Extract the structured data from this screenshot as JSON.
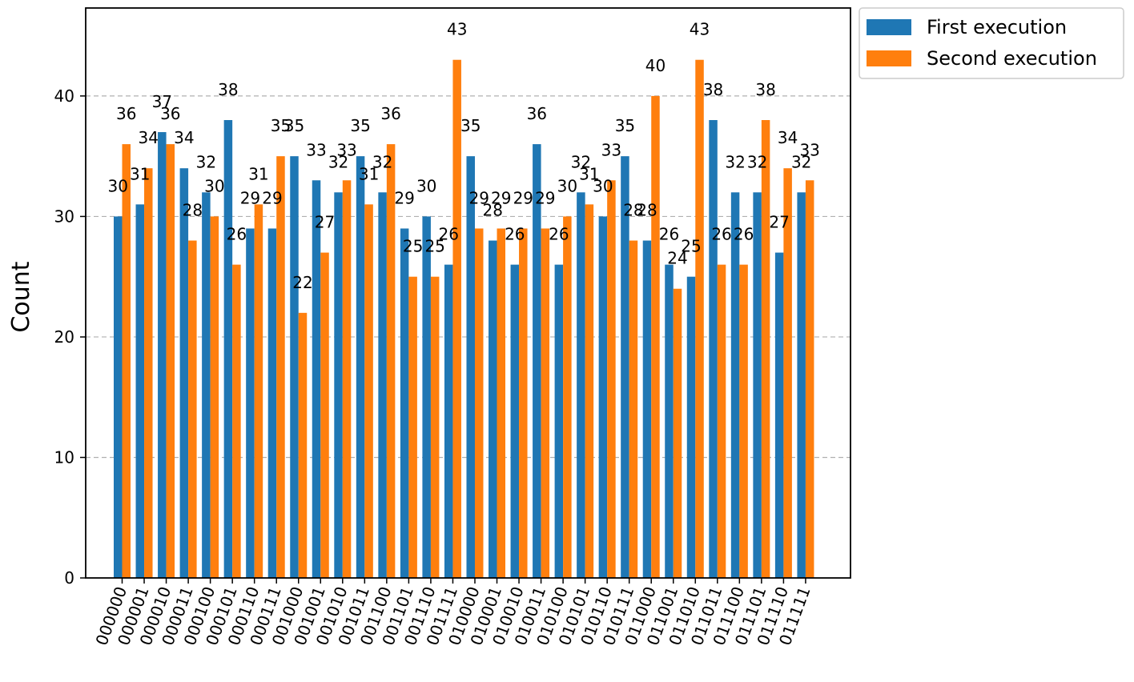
{
  "chart_data": {
    "type": "bar",
    "title": "",
    "xlabel": "",
    "ylabel": "Count",
    "ylim": [
      0,
      47.3
    ],
    "yticks": [
      0,
      10,
      20,
      30,
      40
    ],
    "grid": "y-dashed",
    "legend_position": "outside-top-right",
    "categories": [
      "000000",
      "000001",
      "000010",
      "000011",
      "000100",
      "000101",
      "000110",
      "000111",
      "001000",
      "001001",
      "001010",
      "001011",
      "001100",
      "001101",
      "001110",
      "001111",
      "010000",
      "010001",
      "010010",
      "010011",
      "010100",
      "010101",
      "010110",
      "010111",
      "011000",
      "011001",
      "011010",
      "011011",
      "011100",
      "011101",
      "011110",
      "011111"
    ],
    "series": [
      {
        "name": "First execution",
        "color": "#1f77b4",
        "values": [
          30,
          31,
          37,
          34,
          32,
          38,
          29,
          29,
          35,
          33,
          32,
          35,
          32,
          29,
          30,
          26,
          35,
          28,
          26,
          36,
          26,
          32,
          30,
          35,
          28,
          26,
          25,
          38,
          32,
          32,
          27,
          32
        ]
      },
      {
        "name": "Second execution",
        "color": "#ff7f0e",
        "values": [
          36,
          34,
          36,
          28,
          30,
          26,
          31,
          35,
          22,
          27,
          33,
          31,
          36,
          25,
          25,
          43,
          29,
          29,
          29,
          29,
          30,
          31,
          33,
          28,
          40,
          24,
          43,
          26,
          26,
          38,
          34,
          33
        ]
      }
    ]
  }
}
